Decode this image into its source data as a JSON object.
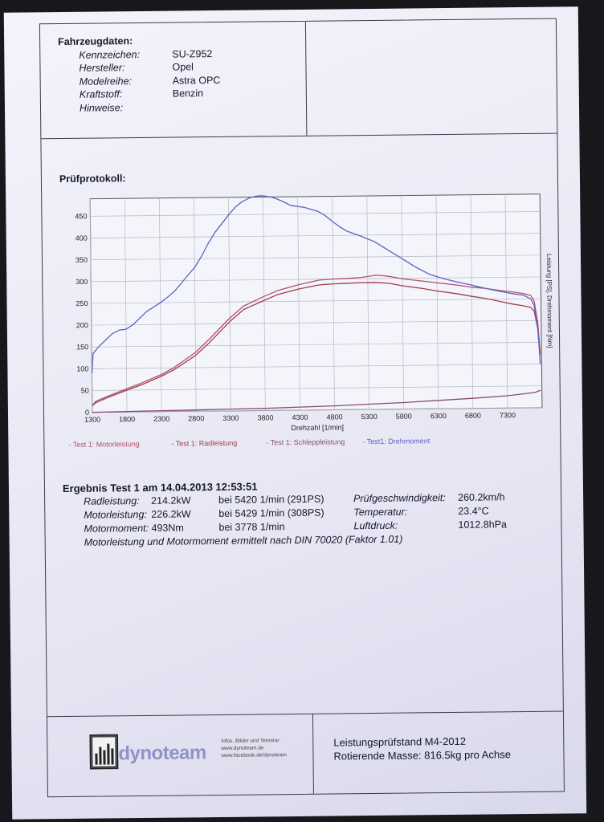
{
  "vehicle": {
    "heading": "Fahrzeugdaten:",
    "rows": [
      {
        "label": "Kennzeichen:",
        "value": "SU-Z952"
      },
      {
        "label": "Hersteller:",
        "value": "Opel"
      },
      {
        "label": "Modelreihe:",
        "value": "Astra OPC"
      },
      {
        "label": "Kraftstoff:",
        "value": "Benzin"
      },
      {
        "label": "Hinweise:",
        "value": ""
      }
    ]
  },
  "protocol_heading": "Prüfprotokoll:",
  "chart_data": {
    "type": "line",
    "xlabel": "Drehzahl [1/min]",
    "ylabel": "Leistung [PS], Drehmoment [Nm]",
    "xlim": [
      1300,
      7800
    ],
    "ylim": [
      0,
      490
    ],
    "xticks": [
      1300,
      1800,
      2300,
      2800,
      3300,
      3800,
      4300,
      4800,
      5300,
      5800,
      6300,
      6800,
      7300
    ],
    "yticks": [
      0,
      50,
      100,
      150,
      200,
      250,
      300,
      350,
      400,
      450
    ],
    "grid": true,
    "series": [
      {
        "name": "- Test 1: Motorleistung",
        "color": "#b0506a",
        "x": [
          1300,
          1350,
          1500,
          1800,
          2000,
          2300,
          2500,
          2800,
          3000,
          3300,
          3500,
          3800,
          4000,
          4300,
          4600,
          4800,
          5000,
          5200,
          5429,
          5600,
          5800,
          6100,
          6300,
          6600,
          6800,
          7000,
          7200,
          7400,
          7550,
          7650,
          7700,
          7750,
          7780
        ],
        "y": [
          15,
          25,
          35,
          53,
          65,
          85,
          102,
          135,
          165,
          213,
          240,
          262,
          275,
          288,
          298,
          300,
          301,
          303,
          308,
          305,
          299,
          293,
          289,
          283,
          278,
          275,
          270,
          266,
          262,
          258,
          245,
          195,
          125
        ]
      },
      {
        "name": "- Test 1: Radleistung",
        "color": "#a03c4a",
        "x": [
          1300,
          1350,
          1500,
          1800,
          2000,
          2300,
          2500,
          2800,
          3000,
          3300,
          3500,
          3800,
          4000,
          4300,
          4600,
          4800,
          5000,
          5200,
          5420,
          5600,
          5800,
          6100,
          6300,
          6600,
          6800,
          7000,
          7200,
          7400,
          7550,
          7650,
          7700,
          7750,
          7780
        ],
        "y": [
          15,
          22,
          32,
          50,
          61,
          81,
          97,
          128,
          157,
          205,
          232,
          253,
          266,
          278,
          287,
          289,
          290,
          291,
          291,
          289,
          283,
          276,
          270,
          263,
          257,
          252,
          245,
          238,
          234,
          230,
          222,
          180,
          120
        ]
      },
      {
        "name": "- Test 1: Schleppleistung",
        "color": "#8a4a78",
        "x": [
          1300,
          1800,
          2300,
          2800,
          3300,
          3800,
          4300,
          4800,
          5300,
          5800,
          6300,
          6800,
          7300,
          7700,
          7780
        ],
        "y": [
          0,
          1,
          2,
          3,
          4,
          5,
          7,
          9,
          12,
          15,
          19,
          23,
          28,
          35,
          40
        ]
      },
      {
        "name": "- Test1: Drehmoment",
        "color": "#5b63c2",
        "x": [
          1300,
          1320,
          1400,
          1500,
          1600,
          1700,
          1800,
          1900,
          2000,
          2100,
          2200,
          2300,
          2400,
          2500,
          2600,
          2700,
          2800,
          2900,
          3000,
          3100,
          3200,
          3300,
          3400,
          3500,
          3600,
          3700,
          3778,
          3900,
          4000,
          4100,
          4200,
          4400,
          4600,
          4700,
          4800,
          4900,
          5000,
          5200,
          5400,
          5600,
          5800,
          6000,
          6200,
          6400,
          6600,
          6800,
          7000,
          7200,
          7400,
          7550,
          7650,
          7700,
          7750,
          7780
        ],
        "y": [
          90,
          135,
          150,
          165,
          180,
          188,
          190,
          200,
          215,
          230,
          240,
          250,
          262,
          275,
          293,
          312,
          330,
          355,
          385,
          410,
          430,
          450,
          468,
          480,
          488,
          492,
          493,
          490,
          485,
          478,
          470,
          465,
          455,
          445,
          432,
          420,
          410,
          398,
          385,
          365,
          345,
          325,
          308,
          298,
          290,
          283,
          275,
          268,
          262,
          258,
          250,
          235,
          180,
          100
        ]
      }
    ]
  },
  "results": {
    "heading": "Ergebnis Test 1 am 14.04.2013 12:53:51",
    "rows": [
      {
        "label": "Radleistung:",
        "value": "214.2kW",
        "detail": "bei 5420 1/min (291PS)",
        "label2": "Prüfgeschwindigkeit:",
        "value2": "260.2km/h"
      },
      {
        "label": "Motorleistung:",
        "value": "226.2kW",
        "detail": "bei 5429 1/min (308PS)",
        "label2": "Temperatur:",
        "value2": "23.4°C"
      },
      {
        "label": "Motormoment:",
        "value": "493Nm",
        "detail": "bei 3778 1/min",
        "label2": "Luftdruck:",
        "value2": "1012.8hPa"
      }
    ],
    "note": "Motorleistung und Motormoment ermittelt nach DIN 70020 (Faktor 1.01)"
  },
  "footer": {
    "logo_text": "dynoteam",
    "info_lines": [
      "Infos, Bilder und Termine:",
      "www.dynoteam.de",
      "www.facebook.de/dynoteam"
    ],
    "line1": "Leistungsprüfstand M4-2012",
    "line2": "Rotierende Masse: 816.5kg pro Achse"
  }
}
